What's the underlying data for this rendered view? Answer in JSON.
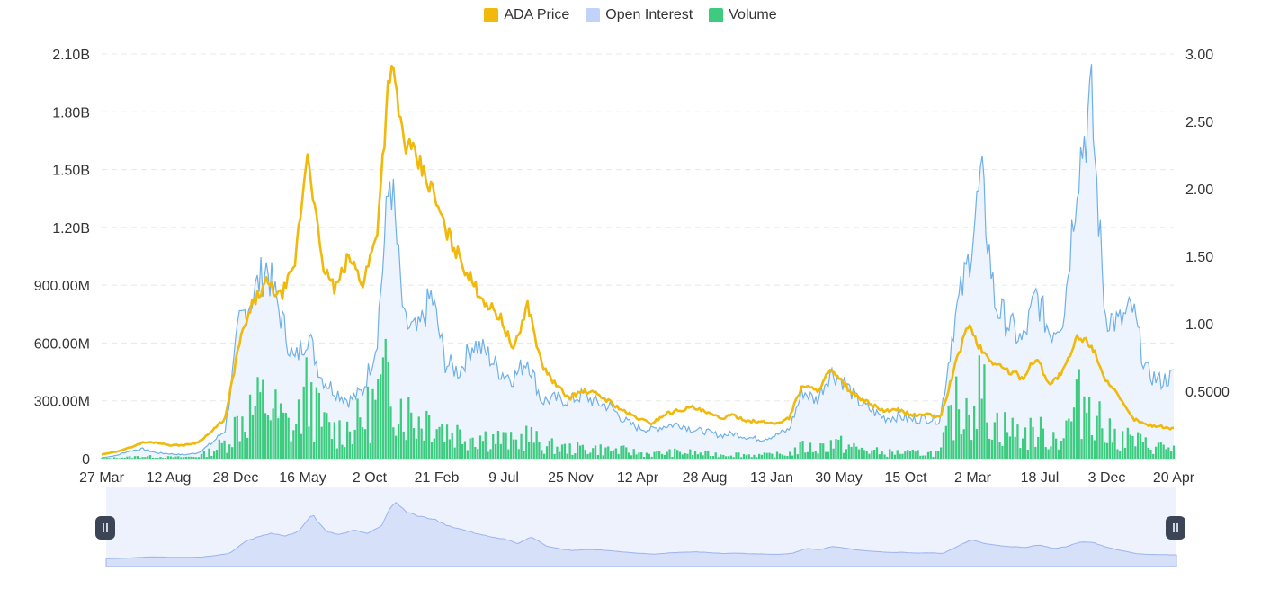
{
  "legend": {
    "price": {
      "label": "ADA Price",
      "color": "#f0b90b"
    },
    "oi": {
      "label": "Open Interest",
      "color": "#c2d3fa"
    },
    "volume": {
      "label": "Volume",
      "color": "#3ccb7f"
    }
  },
  "chart_data": {
    "type": "line",
    "x_ticks": [
      "27 Mar",
      "12 Aug",
      "28 Dec",
      "16 May",
      "2 Oct",
      "21 Feb",
      "9 Jul",
      "25 Nov",
      "12 Apr",
      "28 Aug",
      "13 Jan",
      "30 May",
      "15 Oct",
      "2 Mar",
      "18 Jul",
      "3 Dec",
      "20 Apr"
    ],
    "y_left_ticks": [
      "0",
      "300.00M",
      "600.00M",
      "900.00M",
      "1.20B",
      "1.50B",
      "1.80B",
      "2.10B"
    ],
    "y_left_range": [
      0,
      2100000000
    ],
    "y_right_ticks": [
      "0.5000",
      "1.00",
      "1.50",
      "2.00",
      "2.50",
      "3.00"
    ],
    "y_right_range": [
      0,
      3.0
    ],
    "grid": "horizontal dashed",
    "legend_position": "top-center",
    "series": [
      {
        "name": "ADA Price",
        "axis": "right",
        "style": "line",
        "values": [
          0.03,
          0.05,
          0.08,
          0.12,
          0.12,
          0.1,
          0.1,
          0.12,
          0.2,
          0.3,
          0.85,
          1.15,
          1.3,
          1.2,
          1.4,
          2.3,
          1.45,
          1.25,
          1.5,
          1.3,
          1.65,
          2.95,
          2.35,
          2.2,
          2.0,
          1.7,
          1.5,
          1.3,
          1.15,
          1.05,
          0.8,
          1.15,
          0.7,
          0.55,
          0.45,
          0.5,
          0.48,
          0.42,
          0.35,
          0.3,
          0.26,
          0.33,
          0.36,
          0.38,
          0.34,
          0.3,
          0.32,
          0.28,
          0.27,
          0.26,
          0.3,
          0.55,
          0.5,
          0.65,
          0.55,
          0.45,
          0.4,
          0.35,
          0.36,
          0.32,
          0.33,
          0.3,
          0.65,
          1.0,
          0.8,
          0.7,
          0.65,
          0.6,
          0.75,
          0.55,
          0.65,
          0.9,
          0.85,
          0.6,
          0.45,
          0.3,
          0.25,
          0.24,
          0.22
        ]
      },
      {
        "name": "Open Interest",
        "axis": "left",
        "style": "area",
        "values": [
          5000000,
          15000000,
          40000000,
          50000000,
          30000000,
          25000000,
          20000000,
          30000000,
          80000000,
          150000000,
          700000000,
          850000000,
          1000000000,
          750000000,
          500000000,
          650000000,
          420000000,
          350000000,
          300000000,
          350000000,
          600000000,
          1500000000,
          700000000,
          650000000,
          850000000,
          500000000,
          450000000,
          600000000,
          550000000,
          450000000,
          420000000,
          520000000,
          300000000,
          310000000,
          300000000,
          330000000,
          290000000,
          270000000,
          200000000,
          160000000,
          150000000,
          170000000,
          180000000,
          150000000,
          140000000,
          120000000,
          130000000,
          110000000,
          100000000,
          120000000,
          150000000,
          350000000,
          300000000,
          450000000,
          400000000,
          300000000,
          250000000,
          210000000,
          220000000,
          200000000,
          210000000,
          200000000,
          700000000,
          1000000000,
          1450000000,
          800000000,
          700000000,
          600000000,
          850000000,
          650000000,
          750000000,
          1500000000,
          1850000000,
          750000000,
          700000000,
          780000000,
          450000000,
          400000000,
          430000000
        ]
      },
      {
        "name": "Volume",
        "axis": "left",
        "style": "bars",
        "values": [
          2000000,
          5000000,
          8000000,
          12000000,
          10000000,
          8000000,
          8000000,
          12000000,
          40000000,
          80000000,
          200000000,
          250000000,
          300000000,
          200000000,
          150000000,
          350000000,
          180000000,
          140000000,
          160000000,
          200000000,
          300000000,
          420000000,
          250000000,
          200000000,
          220000000,
          150000000,
          130000000,
          120000000,
          110000000,
          100000000,
          80000000,
          120000000,
          70000000,
          60000000,
          50000000,
          55000000,
          50000000,
          45000000,
          40000000,
          30000000,
          25000000,
          30000000,
          32000000,
          30000000,
          25000000,
          22000000,
          24000000,
          20000000,
          18000000,
          20000000,
          25000000,
          60000000,
          50000000,
          80000000,
          70000000,
          50000000,
          40000000,
          30000000,
          32000000,
          28000000,
          30000000,
          28000000,
          250000000,
          300000000,
          350000000,
          180000000,
          150000000,
          120000000,
          140000000,
          110000000,
          120000000,
          280000000,
          320000000,
          130000000,
          110000000,
          100000000,
          70000000,
          60000000,
          55000000
        ]
      }
    ]
  }
}
